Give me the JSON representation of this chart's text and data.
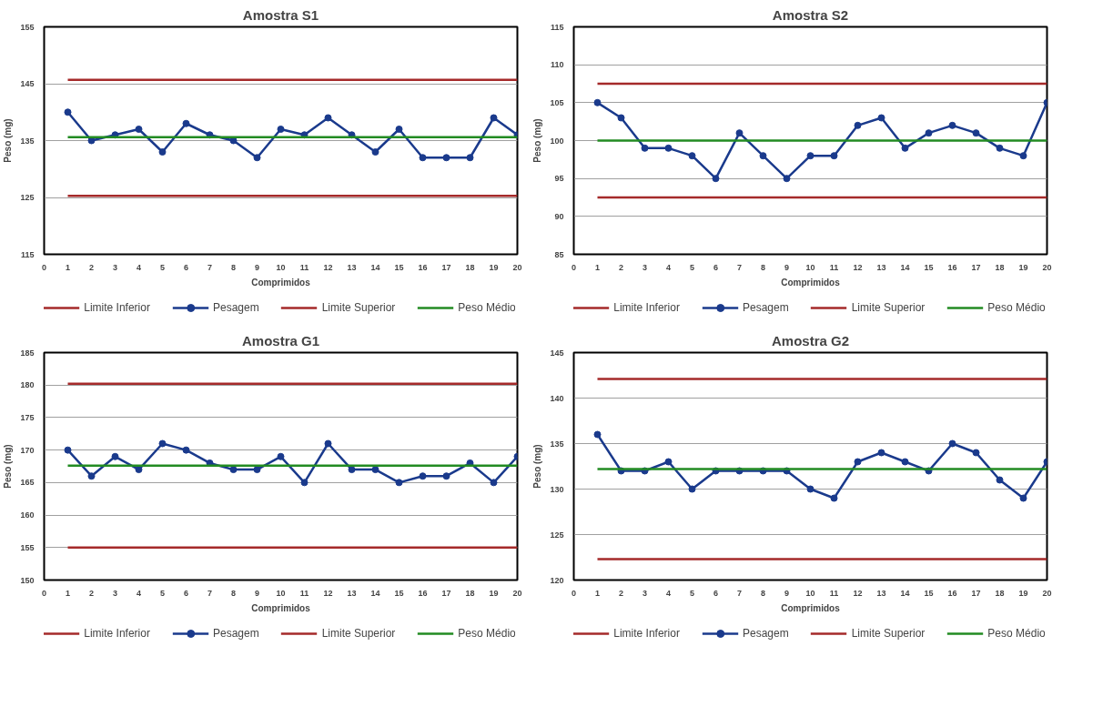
{
  "chart_data": [
    {
      "type": "line",
      "title": "Amostra S1",
      "xlabel": "Comprimidos",
      "ylabel": "Peso (mg)",
      "xlim": [
        0,
        20
      ],
      "xticks": [
        0,
        1,
        2,
        3,
        4,
        5,
        6,
        7,
        8,
        9,
        10,
        11,
        12,
        13,
        14,
        15,
        16,
        17,
        18,
        19,
        20
      ],
      "ylim": [
        115,
        155
      ],
      "yticks": [
        115,
        125,
        135,
        145,
        155
      ],
      "grid": "y",
      "legend": "bottom",
      "x": [
        1,
        2,
        3,
        4,
        5,
        6,
        7,
        8,
        9,
        10,
        11,
        12,
        13,
        14,
        15,
        16,
        17,
        18,
        19,
        20
      ],
      "series": [
        {
          "name": "Limite Inferior",
          "color": "#a52a2a",
          "values": [
            125.3,
            125.3,
            125.3,
            125.3,
            125.3,
            125.3,
            125.3,
            125.3,
            125.3,
            125.3,
            125.3,
            125.3,
            125.3,
            125.3,
            125.3,
            125.3,
            125.3,
            125.3,
            125.3,
            125.3
          ],
          "marker": "none"
        },
        {
          "name": "Pesagem",
          "color": "#1a3a8c",
          "values": [
            140,
            135,
            136,
            137,
            133,
            138,
            136,
            135,
            132,
            137,
            136,
            139,
            136,
            133,
            137,
            132,
            132,
            132,
            139,
            136
          ],
          "marker": "circle"
        },
        {
          "name": "Limite Superior",
          "color": "#a52a2a",
          "values": [
            145.7,
            145.7,
            145.7,
            145.7,
            145.7,
            145.7,
            145.7,
            145.7,
            145.7,
            145.7,
            145.7,
            145.7,
            145.7,
            145.7,
            145.7,
            145.7,
            145.7,
            145.7,
            145.7,
            145.7
          ],
          "marker": "none"
        },
        {
          "name": "Peso Médio",
          "color": "#228b22",
          "values": [
            135.6,
            135.6,
            135.6,
            135.6,
            135.6,
            135.6,
            135.6,
            135.6,
            135.6,
            135.6,
            135.6,
            135.6,
            135.6,
            135.6,
            135.6,
            135.6,
            135.6,
            135.6,
            135.6,
            135.6
          ],
          "marker": "none"
        }
      ]
    },
    {
      "type": "line",
      "title": "Amostra S2",
      "xlabel": "Comprimidos",
      "ylabel": "Peso (mg)",
      "xlim": [
        0,
        20
      ],
      "xticks": [
        0,
        1,
        2,
        3,
        4,
        5,
        6,
        7,
        8,
        9,
        10,
        11,
        12,
        13,
        14,
        15,
        16,
        17,
        18,
        19,
        20
      ],
      "ylim": [
        85,
        115
      ],
      "yticks": [
        85,
        90,
        95,
        100,
        105,
        110,
        115
      ],
      "grid": "y",
      "legend": "bottom",
      "x": [
        1,
        2,
        3,
        4,
        5,
        6,
        7,
        8,
        9,
        10,
        11,
        12,
        13,
        14,
        15,
        16,
        17,
        18,
        19,
        20
      ],
      "series": [
        {
          "name": "Limite Inferior",
          "color": "#a52a2a",
          "values": [
            92.5,
            92.5,
            92.5,
            92.5,
            92.5,
            92.5,
            92.5,
            92.5,
            92.5,
            92.5,
            92.5,
            92.5,
            92.5,
            92.5,
            92.5,
            92.5,
            92.5,
            92.5,
            92.5,
            92.5
          ],
          "marker": "none"
        },
        {
          "name": "Pesagem",
          "color": "#1a3a8c",
          "values": [
            105,
            103,
            99,
            99,
            98,
            95,
            101,
            98,
            95,
            98,
            98,
            102,
            103,
            99,
            101,
            102,
            101,
            99,
            98,
            105
          ],
          "marker": "circle"
        },
        {
          "name": "Limite Superior",
          "color": "#a52a2a",
          "values": [
            107.5,
            107.5,
            107.5,
            107.5,
            107.5,
            107.5,
            107.5,
            107.5,
            107.5,
            107.5,
            107.5,
            107.5,
            107.5,
            107.5,
            107.5,
            107.5,
            107.5,
            107.5,
            107.5,
            107.5
          ],
          "marker": "none"
        },
        {
          "name": "Peso Médio",
          "color": "#228b22",
          "values": [
            100,
            100,
            100,
            100,
            100,
            100,
            100,
            100,
            100,
            100,
            100,
            100,
            100,
            100,
            100,
            100,
            100,
            100,
            100,
            100
          ],
          "marker": "none"
        }
      ]
    },
    {
      "type": "line",
      "title": "Amostra G1",
      "xlabel": "Comprimidos",
      "ylabel": "Peso (mg)",
      "xlim": [
        0,
        20
      ],
      "xticks": [
        0,
        1,
        2,
        3,
        4,
        5,
        6,
        7,
        8,
        9,
        10,
        11,
        12,
        13,
        14,
        15,
        16,
        17,
        18,
        19,
        20
      ],
      "ylim": [
        150,
        185
      ],
      "yticks": [
        150,
        155,
        160,
        165,
        170,
        175,
        180,
        185
      ],
      "grid": "y",
      "legend": "bottom",
      "x": [
        1,
        2,
        3,
        4,
        5,
        6,
        7,
        8,
        9,
        10,
        11,
        12,
        13,
        14,
        15,
        16,
        17,
        18,
        19,
        20
      ],
      "series": [
        {
          "name": "Limite Inferior",
          "color": "#a52a2a",
          "values": [
            155,
            155,
            155,
            155,
            155,
            155,
            155,
            155,
            155,
            155,
            155,
            155,
            155,
            155,
            155,
            155,
            155,
            155,
            155,
            155
          ],
          "marker": "none"
        },
        {
          "name": "Pesagem",
          "color": "#1a3a8c",
          "values": [
            170,
            166,
            169,
            167,
            171,
            170,
            168,
            167,
            167,
            169,
            165,
            171,
            167,
            167,
            165,
            166,
            166,
            168,
            165,
            169
          ],
          "marker": "circle"
        },
        {
          "name": "Limite Superior",
          "color": "#a52a2a",
          "values": [
            180.2,
            180.2,
            180.2,
            180.2,
            180.2,
            180.2,
            180.2,
            180.2,
            180.2,
            180.2,
            180.2,
            180.2,
            180.2,
            180.2,
            180.2,
            180.2,
            180.2,
            180.2,
            180.2,
            180.2
          ],
          "marker": "none"
        },
        {
          "name": "Peso Médio",
          "color": "#228b22",
          "values": [
            167.6,
            167.6,
            167.6,
            167.6,
            167.6,
            167.6,
            167.6,
            167.6,
            167.6,
            167.6,
            167.6,
            167.6,
            167.6,
            167.6,
            167.6,
            167.6,
            167.6,
            167.6,
            167.6,
            167.6
          ],
          "marker": "none"
        }
      ]
    },
    {
      "type": "line",
      "title": "Amostra G2",
      "xlabel": "Comprimidos",
      "ylabel": "Peso (mg)",
      "xlim": [
        0,
        20
      ],
      "xticks": [
        0,
        1,
        2,
        3,
        4,
        5,
        6,
        7,
        8,
        9,
        10,
        11,
        12,
        13,
        14,
        15,
        16,
        17,
        18,
        19,
        20
      ],
      "ylim": [
        120,
        145
      ],
      "yticks": [
        120,
        125,
        130,
        135,
        140,
        145
      ],
      "grid": "y",
      "legend": "bottom",
      "x": [
        1,
        2,
        3,
        4,
        5,
        6,
        7,
        8,
        9,
        10,
        11,
        12,
        13,
        14,
        15,
        16,
        17,
        18,
        19,
        20
      ],
      "series": [
        {
          "name": "Limite Inferior",
          "color": "#a52a2a",
          "values": [
            122.3,
            122.3,
            122.3,
            122.3,
            122.3,
            122.3,
            122.3,
            122.3,
            122.3,
            122.3,
            122.3,
            122.3,
            122.3,
            122.3,
            122.3,
            122.3,
            122.3,
            122.3,
            122.3,
            122.3
          ],
          "marker": "none"
        },
        {
          "name": "Pesagem",
          "color": "#1a3a8c",
          "values": [
            136,
            132,
            132,
            133,
            130,
            132,
            132,
            132,
            132,
            130,
            129,
            133,
            134,
            133,
            132,
            135,
            134,
            131,
            129,
            133
          ],
          "marker": "circle"
        },
        {
          "name": "Limite Superior",
          "color": "#a52a2a",
          "values": [
            142.1,
            142.1,
            142.1,
            142.1,
            142.1,
            142.1,
            142.1,
            142.1,
            142.1,
            142.1,
            142.1,
            142.1,
            142.1,
            142.1,
            142.1,
            142.1,
            142.1,
            142.1,
            142.1,
            142.1
          ],
          "marker": "none"
        },
        {
          "name": "Peso Médio",
          "color": "#228b22",
          "values": [
            132.2,
            132.2,
            132.2,
            132.2,
            132.2,
            132.2,
            132.2,
            132.2,
            132.2,
            132.2,
            132.2,
            132.2,
            132.2,
            132.2,
            132.2,
            132.2,
            132.2,
            132.2,
            132.2,
            132.2
          ],
          "marker": "none"
        }
      ]
    }
  ]
}
